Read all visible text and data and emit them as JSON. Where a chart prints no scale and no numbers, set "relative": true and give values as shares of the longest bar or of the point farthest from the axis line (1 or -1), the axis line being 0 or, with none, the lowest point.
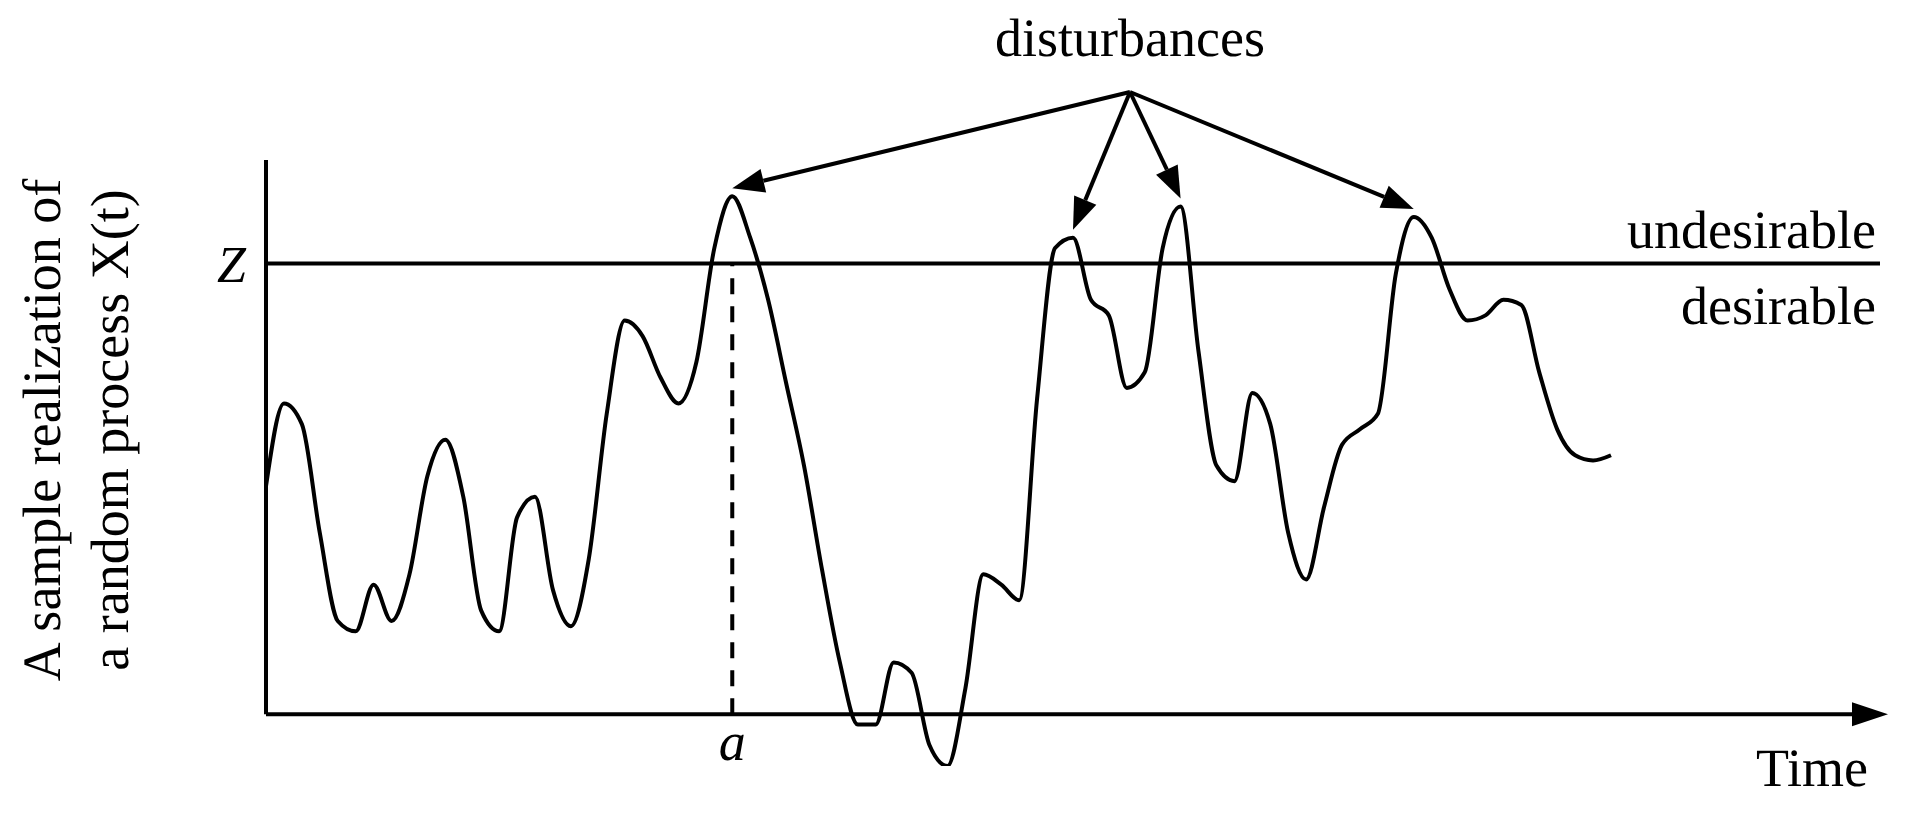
{
  "chart_data": {
    "type": "line",
    "relative": true,
    "ylabel": "A sample realization of a random process X(t)",
    "xlabel": "Time",
    "categories": [
      null,
      null,
      null,
      null,
      null,
      null,
      null,
      null,
      null,
      null,
      null,
      null,
      null,
      null,
      null,
      null,
      null,
      null,
      null,
      null,
      null,
      null,
      null,
      null,
      null,
      null,
      null,
      null,
      null,
      null,
      null,
      null,
      null,
      null,
      null,
      null,
      null,
      null,
      null,
      null,
      null,
      null,
      null,
      null,
      null,
      null,
      null,
      null,
      null,
      null,
      null,
      null,
      null,
      null,
      null,
      null,
      null,
      null,
      null,
      null,
      null,
      null,
      null,
      null,
      null,
      null,
      null,
      null,
      null,
      null,
      null,
      null,
      null,
      null,
      null,
      null,
      null,
      null,
      null,
      null,
      null,
      null,
      null,
      null,
      null,
      null,
      null,
      null,
      null,
      null,
      null
    ],
    "ref_lines": [
      {
        "axis": "y",
        "value": 0.87,
        "label": "Z",
        "color": "#000000"
      }
    ],
    "annotations": [
      "disturbances",
      "undesirable",
      "desirable",
      "a"
    ],
    "series": [
      {
        "color": "#000000",
        "values": [
          0.44,
          0.6,
          0.56,
          0.35,
          0.18,
          0.16,
          0.25,
          0.18,
          0.27,
          0.46,
          0.53,
          0.42,
          0.2,
          0.16,
          0.38,
          0.42,
          0.24,
          0.17,
          0.3,
          0.58,
          0.76,
          0.73,
          0.65,
          0.6,
          0.68,
          0.9,
          1.0,
          0.92,
          0.8,
          0.64,
          0.48,
          0.28,
          0.1,
          -0.02,
          -0.02,
          0.1,
          0.08,
          -0.06,
          -0.1,
          0.05,
          0.27,
          0.25,
          0.22,
          0.61,
          0.9,
          0.92,
          0.8,
          0.77,
          0.63,
          0.66,
          0.9,
          0.98,
          0.7,
          0.48,
          0.45,
          0.62,
          0.56,
          0.35,
          0.26,
          0.4,
          0.52,
          0.55,
          0.58,
          0.85,
          0.96,
          0.92,
          0.82,
          0.76,
          0.77,
          0.8,
          0.79,
          0.66,
          0.55,
          0.5,
          0.49,
          0.5,
          null,
          null,
          null,
          null,
          null,
          null,
          null,
          null,
          null,
          null,
          null,
          null,
          null,
          null,
          null
        ]
      }
    ]
  }
}
